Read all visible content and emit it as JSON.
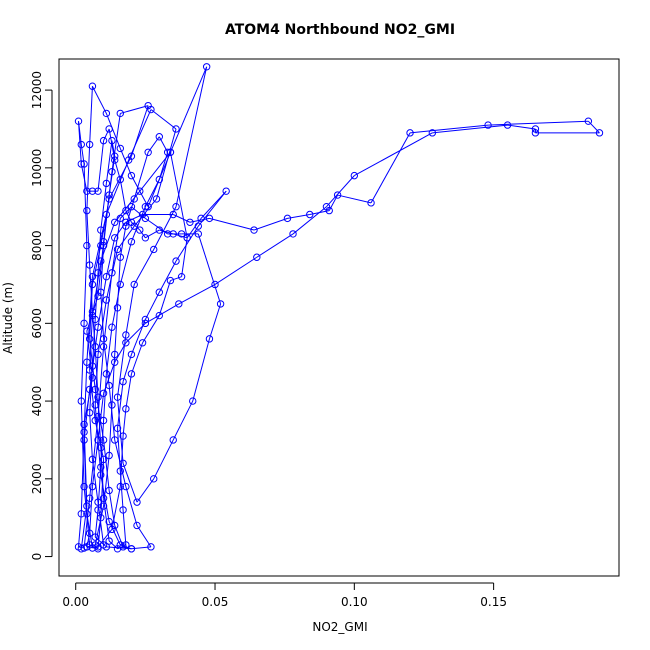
{
  "chart_data": {
    "type": "line",
    "title": "ATOM4 Northbound NO2_GMI",
    "xlabel": "NO2_GMI",
    "ylabel": "Altitude (m)",
    "xlim": [
      -0.006,
      0.195
    ],
    "ylim": [
      -500,
      12800
    ],
    "x_ticks": [
      0.0,
      0.05,
      0.1,
      0.15
    ],
    "x_tick_labels": [
      "0.00",
      "0.05",
      "0.10",
      "0.15"
    ],
    "y_ticks": [
      0,
      2000,
      4000,
      6000,
      8000,
      10000,
      12000
    ],
    "y_tick_labels": [
      "0",
      "2000",
      "4000",
      "6000",
      "8000",
      "10000",
      "12000"
    ],
    "grid": false,
    "legend": "none",
    "series_color": "#0000ff",
    "series": [
      {
        "marker": "open-circle",
        "points": [
          [
            0.002,
            200
          ],
          [
            0.004,
            1300
          ],
          [
            0.003,
            3400
          ],
          [
            0.006,
            4600
          ],
          [
            0.004,
            5800
          ],
          [
            0.008,
            6700
          ],
          [
            0.01,
            8100
          ],
          [
            0.013,
            9900
          ],
          [
            0.016,
            11400
          ],
          [
            0.026,
            11600
          ],
          [
            0.02,
            10300
          ],
          [
            0.012,
            9200
          ],
          [
            0.009,
            8000
          ],
          [
            0.006,
            7000
          ],
          [
            0.005,
            5600
          ],
          [
            0.007,
            4300
          ],
          [
            0.01,
            3000
          ],
          [
            0.012,
            1700
          ],
          [
            0.014,
            800
          ],
          [
            0.017,
            250
          ],
          [
            0.02,
            200
          ],
          [
            0.016,
            300
          ],
          [
            0.012,
            900
          ],
          [
            0.009,
            2100
          ],
          [
            0.007,
            3900
          ],
          [
            0.008,
            5200
          ],
          [
            0.011,
            6600
          ],
          [
            0.015,
            7900
          ],
          [
            0.021,
            8500
          ],
          [
            0.029,
            9200
          ],
          [
            0.036,
            11000
          ],
          [
            0.027,
            11500
          ],
          [
            0.019,
            10200
          ],
          [
            0.011,
            8800
          ],
          [
            0.006,
            7200
          ],
          [
            0.004,
            5000
          ],
          [
            0.003,
            3200
          ],
          [
            0.002,
            1100
          ],
          [
            0.001,
            250
          ],
          [
            0.003,
            220
          ],
          [
            0.005,
            1500
          ],
          [
            0.008,
            3600
          ],
          [
            0.01,
            5400
          ],
          [
            0.013,
            7300
          ],
          [
            0.016,
            8700
          ],
          [
            0.02,
            9000
          ],
          [
            0.025,
            8700
          ],
          [
            0.033,
            8300
          ],
          [
            0.038,
            8300
          ],
          [
            0.044,
            8300
          ],
          [
            0.052,
            6500
          ],
          [
            0.048,
            5600
          ],
          [
            0.042,
            4000
          ],
          [
            0.035,
            3000
          ],
          [
            0.028,
            2000
          ],
          [
            0.022,
            1400
          ],
          [
            0.017,
            2400
          ],
          [
            0.015,
            4100
          ],
          [
            0.018,
            5700
          ],
          [
            0.021,
            7000
          ],
          [
            0.028,
            7900
          ],
          [
            0.036,
            9000
          ],
          [
            0.047,
            12600
          ],
          [
            0.034,
            10400
          ],
          [
            0.023,
            9400
          ],
          [
            0.014,
            8600
          ],
          [
            0.009,
            7600
          ],
          [
            0.006,
            6200
          ],
          [
            0.005,
            4800
          ],
          [
            0.007,
            3500
          ],
          [
            0.01,
            2500
          ],
          [
            0.009,
            1000
          ],
          [
            0.008,
            200
          ],
          [
            0.005,
            300
          ],
          [
            0.003,
            1800
          ],
          [
            0.002,
            4000
          ],
          [
            0.003,
            6000
          ],
          [
            0.004,
            8000
          ],
          [
            0.003,
            10100
          ],
          [
            0.002,
            10600
          ],
          [
            0.001,
            11200
          ],
          [
            0.002,
            10100
          ],
          [
            0.004,
            9400
          ],
          [
            0.006,
            9400
          ],
          [
            0.008,
            9400
          ],
          [
            0.01,
            10700
          ],
          [
            0.012,
            11000
          ],
          [
            0.014,
            10200
          ],
          [
            0.016,
            9700
          ],
          [
            0.018,
            8900
          ],
          [
            0.02,
            8600
          ],
          [
            0.023,
            8400
          ],
          [
            0.025,
            8200
          ],
          [
            0.03,
            8400
          ],
          [
            0.035,
            8300
          ],
          [
            0.04,
            8200
          ],
          [
            0.045,
            8700
          ],
          [
            0.054,
            9400
          ],
          [
            0.044,
            8500
          ],
          [
            0.036,
            7600
          ],
          [
            0.03,
            6800
          ],
          [
            0.025,
            6100
          ],
          [
            0.02,
            5200
          ],
          [
            0.017,
            4500
          ],
          [
            0.015,
            3300
          ],
          [
            0.016,
            2200
          ],
          [
            0.017,
            1200
          ],
          [
            0.018,
            300
          ],
          [
            0.015,
            200
          ],
          [
            0.012,
            400
          ],
          [
            0.01,
            1500
          ],
          [
            0.009,
            2800
          ],
          [
            0.008,
            4100
          ],
          [
            0.007,
            5400
          ],
          [
            0.006,
            6300
          ],
          [
            0.005,
            7500
          ],
          [
            0.004,
            8900
          ],
          [
            0.005,
            10600
          ],
          [
            0.006,
            12100
          ],
          [
            0.011,
            11400
          ],
          [
            0.016,
            10500
          ],
          [
            0.02,
            9800
          ],
          [
            0.026,
            9000
          ],
          [
            0.034,
            10400
          ],
          [
            0.04,
            8200
          ],
          [
            0.038,
            7200
          ],
          [
            0.034,
            7100
          ],
          [
            0.03,
            6200
          ],
          [
            0.024,
            5500
          ],
          [
            0.02,
            4700
          ],
          [
            0.018,
            3800
          ],
          [
            0.017,
            3100
          ],
          [
            0.016,
            1800
          ],
          [
            0.013,
            700
          ],
          [
            0.008,
            250
          ],
          [
            0.006,
            220
          ],
          [
            0.004,
            1100
          ],
          [
            0.003,
            3000
          ],
          [
            0.005,
            4300
          ],
          [
            0.008,
            5900
          ],
          [
            0.011,
            7200
          ],
          [
            0.014,
            8200
          ],
          [
            0.018,
            8600
          ],
          [
            0.024,
            8800
          ],
          [
            0.035,
            8800
          ],
          [
            0.041,
            8600
          ],
          [
            0.048,
            8700
          ],
          [
            0.064,
            8400
          ],
          [
            0.076,
            8700
          ],
          [
            0.084,
            8800
          ],
          [
            0.091,
            8900
          ],
          [
            0.094,
            9300
          ],
          [
            0.106,
            9100
          ],
          [
            0.12,
            10900
          ],
          [
            0.148,
            11100
          ],
          [
            0.184,
            11200
          ],
          [
            0.188,
            10900
          ],
          [
            0.165,
            10900
          ],
          [
            0.165,
            11000
          ],
          [
            0.155,
            11100
          ],
          [
            0.128,
            10900
          ],
          [
            0.1,
            9800
          ],
          [
            0.09,
            9000
          ],
          [
            0.078,
            8300
          ],
          [
            0.065,
            7700
          ],
          [
            0.05,
            7000
          ],
          [
            0.037,
            6500
          ],
          [
            0.025,
            6000
          ],
          [
            0.018,
            5500
          ],
          [
            0.014,
            5000
          ],
          [
            0.01,
            4200
          ],
          [
            0.008,
            3000
          ],
          [
            0.006,
            1800
          ],
          [
            0.005,
            600
          ],
          [
            0.004,
            250
          ],
          [
            0.007,
            300
          ],
          [
            0.01,
            1300
          ],
          [
            0.012,
            2600
          ],
          [
            0.013,
            3900
          ],
          [
            0.014,
            5200
          ],
          [
            0.015,
            6400
          ],
          [
            0.016,
            7700
          ],
          [
            0.018,
            8500
          ],
          [
            0.021,
            9200
          ],
          [
            0.026,
            10400
          ],
          [
            0.03,
            10800
          ],
          [
            0.033,
            10400
          ],
          [
            0.03,
            9700
          ],
          [
            0.025,
            9000
          ],
          [
            0.02,
            8100
          ],
          [
            0.016,
            7000
          ],
          [
            0.013,
            5900
          ],
          [
            0.011,
            4700
          ],
          [
            0.01,
            3500
          ],
          [
            0.009,
            2300
          ],
          [
            0.008,
            1200
          ],
          [
            0.007,
            500
          ],
          [
            0.011,
            250
          ],
          [
            0.02,
            200
          ],
          [
            0.027,
            250
          ],
          [
            0.022,
            800
          ],
          [
            0.018,
            1800
          ],
          [
            0.014,
            3000
          ],
          [
            0.012,
            4400
          ],
          [
            0.01,
            5600
          ],
          [
            0.009,
            6800
          ],
          [
            0.01,
            8000
          ],
          [
            0.012,
            9300
          ],
          [
            0.014,
            10300
          ],
          [
            0.013,
            10700
          ],
          [
            0.011,
            9600
          ],
          [
            0.009,
            8400
          ],
          [
            0.008,
            7300
          ],
          [
            0.007,
            6100
          ],
          [
            0.006,
            4900
          ],
          [
            0.005,
            3700
          ],
          [
            0.006,
            2500
          ],
          [
            0.008,
            1400
          ],
          [
            0.01,
            300
          ]
        ]
      }
    ]
  }
}
